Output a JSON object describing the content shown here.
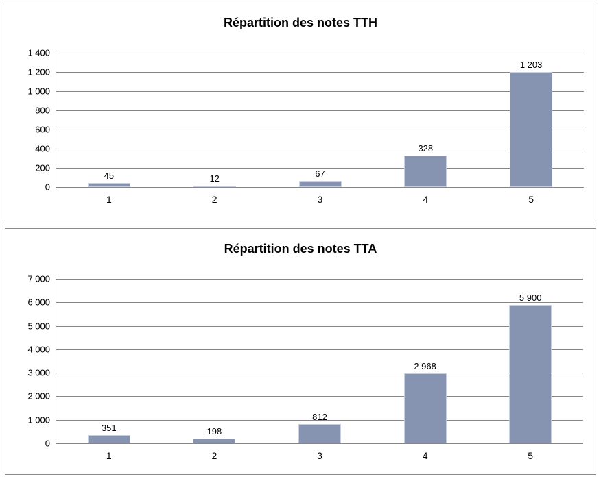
{
  "colors": {
    "bar_fill": "#8794B1",
    "bar_border": "#C7CFE0",
    "gridline": "#868686",
    "axis": "#868686",
    "chart_border": "#8a8a8a",
    "text": "#000000",
    "background": "#ffffff"
  },
  "chart_data": [
    {
      "type": "bar",
      "title": "Répartition des notes TTH",
      "categories": [
        "1",
        "2",
        "3",
        "4",
        "5"
      ],
      "values": [
        45,
        12,
        67,
        328,
        1203
      ],
      "value_labels": [
        "45",
        "12",
        "67",
        "328",
        "1 203"
      ],
      "xlabel": "",
      "ylabel": "",
      "ylim": [
        0,
        1400
      ],
      "ytick_step": 200,
      "yticks": [
        "1 400",
        "1 200",
        "1 000",
        "800",
        "600",
        "400",
        "200",
        "0"
      ],
      "grid": true,
      "legend": false
    },
    {
      "type": "bar",
      "title": "Répartition des notes TTA",
      "categories": [
        "1",
        "2",
        "3",
        "4",
        "5"
      ],
      "values": [
        351,
        198,
        812,
        2968,
        5900
      ],
      "value_labels": [
        "351",
        "198",
        "812",
        "2 968",
        "5 900"
      ],
      "xlabel": "",
      "ylabel": "",
      "ylim": [
        0,
        7000
      ],
      "ytick_step": 1000,
      "yticks": [
        "7 000",
        "6 000",
        "5 000",
        "4 000",
        "3 000",
        "2 000",
        "1 000",
        "0"
      ],
      "grid": true,
      "legend": false
    }
  ]
}
